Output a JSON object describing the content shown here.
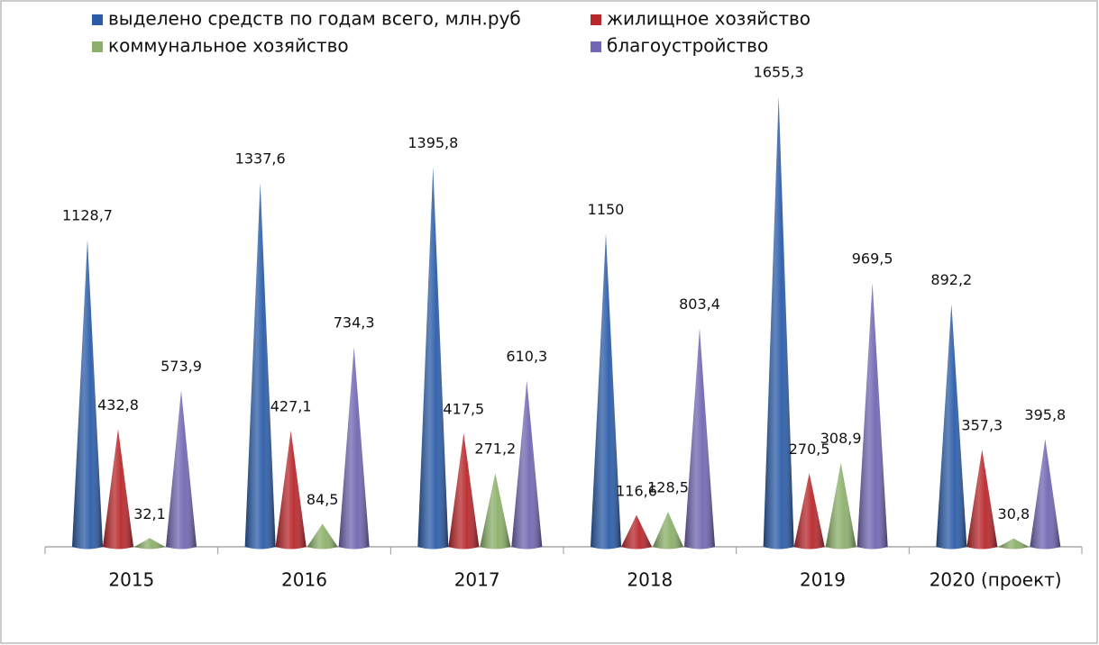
{
  "chart_data": {
    "type": "cone",
    "categories": [
      "2015",
      "2016",
      "2017",
      "2018",
      "2019",
      "2020  (проект)"
    ],
    "series": [
      {
        "name": "выделено средств по годам всего, млн.руб",
        "color": "#2b5ca8",
        "values": [
          1128.7,
          1337.6,
          1395.8,
          1150,
          1655.3,
          892.2
        ],
        "value_labels": [
          "1128,7",
          "1337,6",
          "1395,8",
          "1150",
          "1655,3",
          "892,2"
        ]
      },
      {
        "name": "жилищное хозяйство",
        "color": "#b8272b",
        "values": [
          432.8,
          427.1,
          417.5,
          116.6,
          270.5,
          357.3
        ],
        "value_labels": [
          "432,8",
          "427,1",
          "417,5",
          "116,6",
          "270,5",
          "357,3"
        ]
      },
      {
        "name": "коммунальное хозяйство",
        "color": "#8cb06a",
        "values": [
          32.1,
          84.5,
          271.2,
          128.5,
          308.9,
          30.8
        ],
        "value_labels": [
          "32,1",
          "84,5",
          "271,2",
          "128,5",
          "308,9",
          "30,8"
        ]
      },
      {
        "name": "благоустройство",
        "color": "#7067b2",
        "values": [
          573.9,
          734.3,
          610.3,
          803.4,
          969.5,
          395.8
        ],
        "value_labels": [
          "573,9",
          "734,3",
          "610,3",
          "803,4",
          "969,5",
          "395,8"
        ]
      }
    ]
  }
}
